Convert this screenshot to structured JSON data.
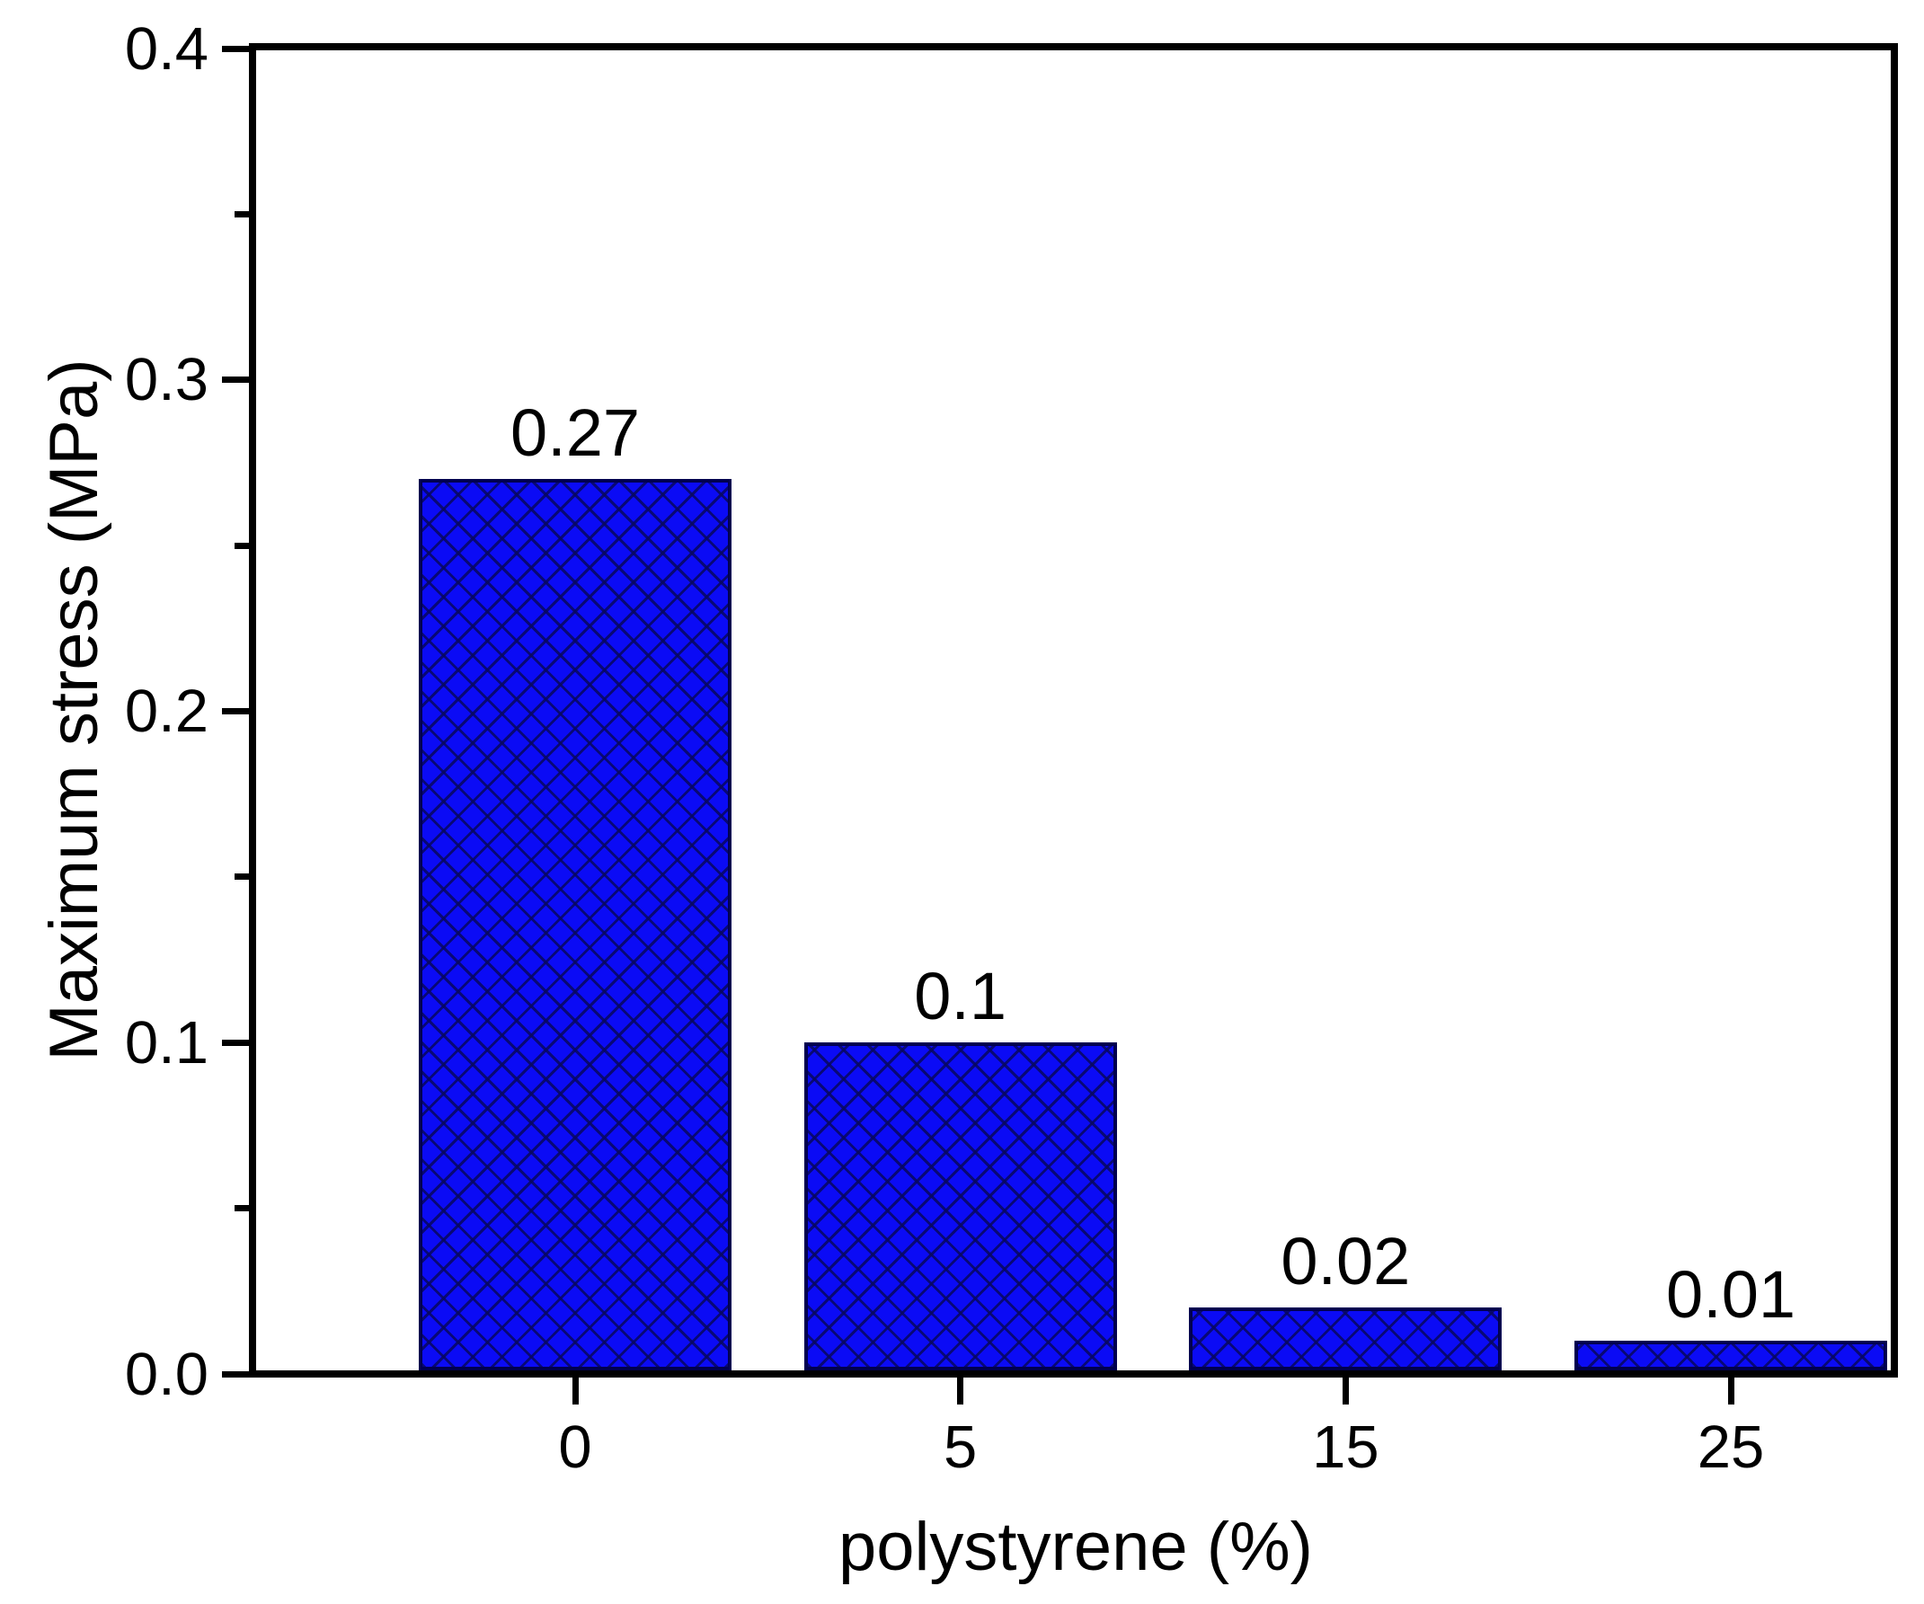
{
  "chart_data": {
    "type": "bar",
    "title": "",
    "xlabel": "polystyrene (%)",
    "ylabel": "Maximum stress (MPa)",
    "categories": [
      "0",
      "5",
      "15",
      "25"
    ],
    "values": [
      0.27,
      0.1,
      0.02,
      0.01
    ],
    "value_labels": [
      "0.27",
      "0.1",
      "0.02",
      "0.01"
    ],
    "y_ticks": [
      {
        "value": 0.0,
        "label": "0.0"
      },
      {
        "value": 0.1,
        "label": "0.1"
      },
      {
        "value": 0.2,
        "label": "0.2"
      },
      {
        "value": 0.3,
        "label": "0.3"
      },
      {
        "value": 0.4,
        "label": "0.4"
      }
    ],
    "y_minor_ticks": [
      0.05,
      0.15,
      0.25,
      0.35
    ],
    "ylim": [
      0,
      0.4
    ],
    "grid": false,
    "legend": null,
    "bar_fill_color": "#0b0bf5",
    "bar_hatch_color": "#08085f",
    "bar_border_color": "#000050",
    "axis_color": "#000000",
    "text_color": "#000000",
    "hatch_style": "diagonal-crosshatch"
  }
}
